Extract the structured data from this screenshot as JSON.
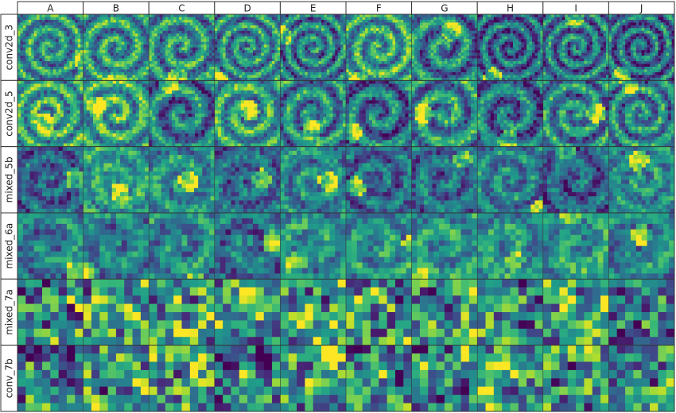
{
  "columns": [
    "A",
    "B",
    "C",
    "D",
    "E",
    "F",
    "G",
    "H",
    "I",
    "J"
  ],
  "rows": [
    "conv2d_3",
    "conv2d_5",
    "mixed_5b",
    "mixed_6a",
    "mixed_7a",
    "conv_7b"
  ]
}
